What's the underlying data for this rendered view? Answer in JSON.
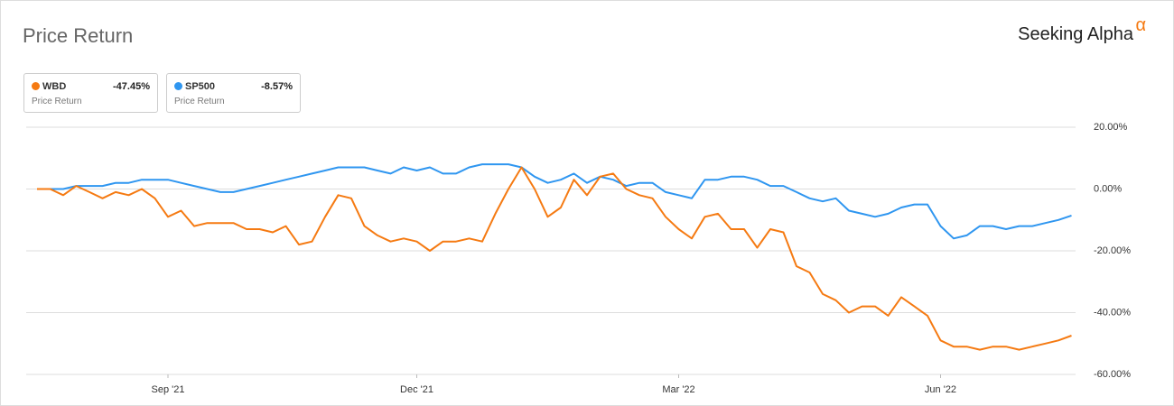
{
  "chart_data": {
    "type": "line",
    "title": "Price Return",
    "brand": "Seeking Alpha",
    "brand_mark": "α",
    "categories": [
      null,
      null,
      null,
      null,
      null,
      null,
      null,
      null,
      null,
      null,
      "Sep '21",
      null,
      null,
      null,
      null,
      null,
      null,
      null,
      null,
      null,
      null,
      null,
      null,
      null,
      null,
      null,
      null,
      null,
      null,
      "Dec '21",
      null,
      null,
      null,
      null,
      null,
      null,
      null,
      null,
      null,
      null,
      null,
      null,
      null,
      null,
      null,
      null,
      null,
      null,
      null,
      "Mar '22",
      null,
      null,
      null,
      null,
      null,
      null,
      null,
      null,
      null,
      null,
      null,
      null,
      null,
      null,
      null,
      null,
      null,
      null,
      null,
      "Jun '22",
      null,
      null,
      null,
      null,
      null,
      null,
      null,
      null,
      null,
      null
    ],
    "series": [
      {
        "name": "WBD",
        "color": "#f57a12",
        "summary": "-47.45%",
        "subtitle": "Price Return",
        "values": [
          0,
          0,
          -2,
          1,
          -1,
          -3,
          -1,
          -2,
          0,
          -3,
          -9,
          -7,
          -12,
          -11,
          -11,
          -11,
          -13,
          -13,
          -14,
          -12,
          -18,
          -17,
          -9,
          -2,
          -3,
          -12,
          -15,
          -17,
          -16,
          -17,
          -20,
          -17,
          -17,
          -16,
          -17,
          -8,
          0,
          7,
          0,
          -9,
          -6,
          3,
          -2,
          4,
          5,
          0,
          -2,
          -3,
          -9,
          -13,
          -16,
          -9,
          -8,
          -13,
          -13,
          -19,
          -13,
          -14,
          -25,
          -27,
          -34,
          -36,
          -40,
          -38,
          -38,
          -41,
          -35,
          -38,
          -41,
          -49,
          -51,
          -51,
          -52,
          -51,
          -51,
          -52,
          -51,
          -50,
          -49,
          -47.45
        ]
      },
      {
        "name": "SP500",
        "color": "#2f96f0",
        "summary": "-8.57%",
        "subtitle": "Price Return",
        "values": [
          0,
          0,
          0,
          1,
          1,
          1,
          2,
          2,
          3,
          3,
          3,
          2,
          1,
          0,
          -1,
          -1,
          0,
          1,
          2,
          3,
          4,
          5,
          6,
          7,
          7,
          7,
          6,
          5,
          7,
          6,
          7,
          5,
          5,
          7,
          8,
          8,
          8,
          7,
          4,
          2,
          3,
          5,
          2,
          4,
          3,
          1,
          2,
          2,
          -1,
          -2,
          -3,
          3,
          3,
          4,
          4,
          3,
          1,
          1,
          -1,
          -3,
          -4,
          -3,
          -7,
          -8,
          -9,
          -8,
          -6,
          -5,
          -5,
          -12,
          -16,
          -15,
          -12,
          -12,
          -13,
          -12,
          -12,
          -11,
          -10,
          -8.57
        ]
      }
    ],
    "ylim": [
      -60,
      20
    ],
    "yticks": [
      {
        "value": -60,
        "label": "-60.00%"
      },
      {
        "value": -40,
        "label": "-40.00%"
      },
      {
        "value": -20,
        "label": "-20.00%"
      },
      {
        "value": 0,
        "label": "0.00%"
      },
      {
        "value": 20,
        "label": "20.00%"
      }
    ],
    "grid": true
  }
}
